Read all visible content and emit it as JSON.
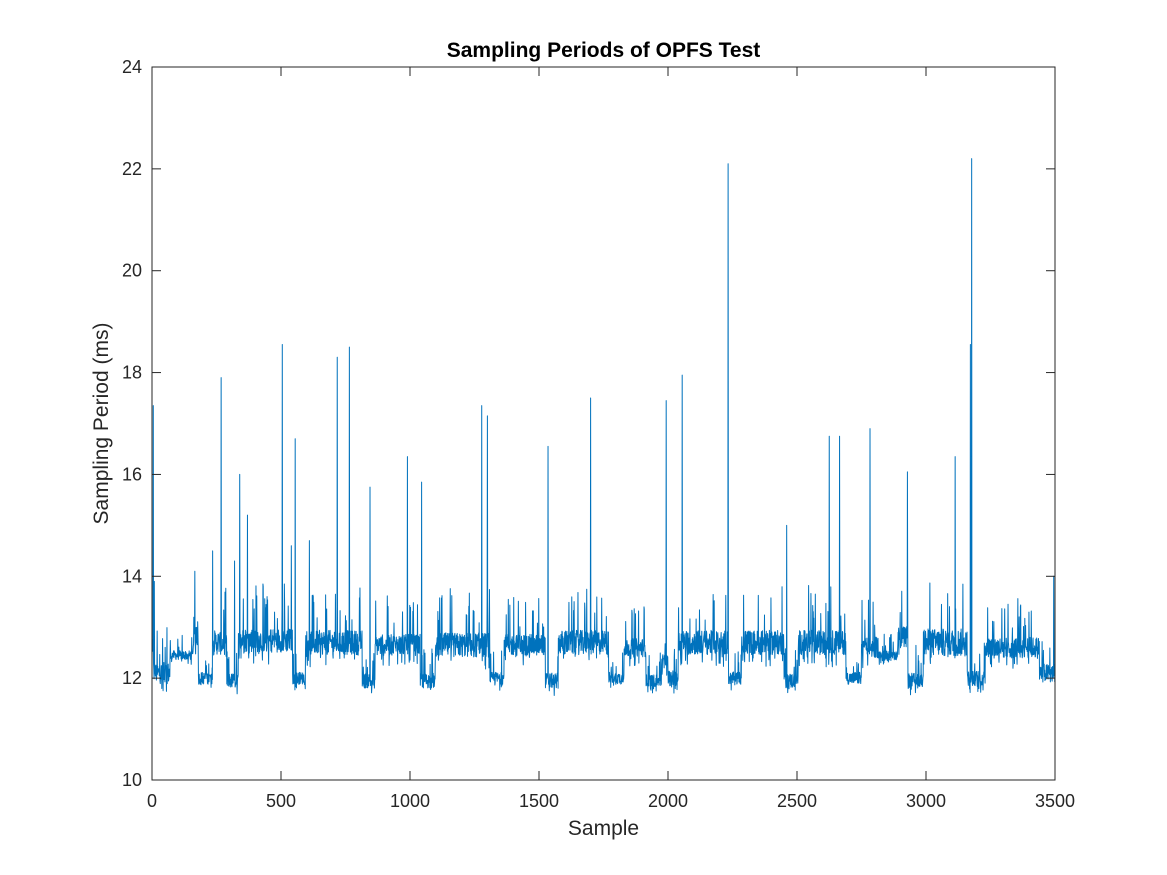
{
  "chart_data": {
    "type": "line",
    "title": "Sampling Periods of OPFS Test",
    "xlabel": "Sample",
    "ylabel": "Sampling Period (ms)",
    "xlim": [
      0,
      3500
    ],
    "ylim": [
      10,
      24
    ],
    "xticks": [
      0,
      500,
      1000,
      1500,
      2000,
      2500,
      3000,
      3500
    ],
    "yticks": [
      10,
      12,
      14,
      16,
      18,
      20,
      22,
      24
    ],
    "grid": false,
    "legend": "none",
    "line_color": "#0072BD",
    "series": [
      {
        "segments": [
          {
            "from": 0,
            "to": 8,
            "level": 12.4,
            "spread": 0.6
          },
          {
            "from": 8,
            "to": 70,
            "level": 12.1,
            "spread": 0.35
          },
          {
            "from": 70,
            "to": 160,
            "level": 12.45,
            "spread": 0.15
          },
          {
            "from": 160,
            "to": 180,
            "level": 12.9,
            "spread": 0.5
          },
          {
            "from": 180,
            "to": 235,
            "level": 12.0,
            "spread": 0.2
          },
          {
            "from": 235,
            "to": 290,
            "level": 12.7,
            "spread": 0.4
          },
          {
            "from": 290,
            "to": 335,
            "level": 11.95,
            "spread": 0.25
          },
          {
            "from": 335,
            "to": 545,
            "level": 12.75,
            "spread": 0.4
          },
          {
            "from": 545,
            "to": 595,
            "level": 12.0,
            "spread": 0.2
          },
          {
            "from": 595,
            "to": 815,
            "level": 12.7,
            "spread": 0.4
          },
          {
            "from": 815,
            "to": 865,
            "level": 11.95,
            "spread": 0.25
          },
          {
            "from": 865,
            "to": 1040,
            "level": 12.65,
            "spread": 0.35
          },
          {
            "from": 1040,
            "to": 1100,
            "level": 11.95,
            "spread": 0.25
          },
          {
            "from": 1100,
            "to": 1310,
            "level": 12.65,
            "spread": 0.4
          },
          {
            "from": 1310,
            "to": 1365,
            "level": 12.0,
            "spread": 0.2
          },
          {
            "from": 1365,
            "to": 1525,
            "level": 12.65,
            "spread": 0.35
          },
          {
            "from": 1525,
            "to": 1575,
            "level": 11.95,
            "spread": 0.25
          },
          {
            "from": 1575,
            "to": 1770,
            "level": 12.7,
            "spread": 0.4
          },
          {
            "from": 1770,
            "to": 1830,
            "level": 12.0,
            "spread": 0.2
          },
          {
            "from": 1830,
            "to": 1915,
            "level": 12.6,
            "spread": 0.3
          },
          {
            "from": 1915,
            "to": 1975,
            "level": 11.95,
            "spread": 0.2
          },
          {
            "from": 1975,
            "to": 2000,
            "level": 12.3,
            "spread": 0.3
          },
          {
            "from": 2000,
            "to": 2040,
            "level": 12.0,
            "spread": 0.25
          },
          {
            "from": 2040,
            "to": 2235,
            "level": 12.7,
            "spread": 0.4
          },
          {
            "from": 2235,
            "to": 2285,
            "level": 12.0,
            "spread": 0.2
          },
          {
            "from": 2285,
            "to": 2450,
            "level": 12.7,
            "spread": 0.4
          },
          {
            "from": 2450,
            "to": 2505,
            "level": 11.95,
            "spread": 0.25
          },
          {
            "from": 2505,
            "to": 2690,
            "level": 12.7,
            "spread": 0.4
          },
          {
            "from": 2690,
            "to": 2750,
            "level": 12.0,
            "spread": 0.2
          },
          {
            "from": 2750,
            "to": 2820,
            "level": 12.6,
            "spread": 0.35
          },
          {
            "from": 2820,
            "to": 2890,
            "level": 12.45,
            "spread": 0.15
          },
          {
            "from": 2890,
            "to": 2930,
            "level": 12.8,
            "spread": 0.35
          },
          {
            "from": 2930,
            "to": 2990,
            "level": 11.95,
            "spread": 0.25
          },
          {
            "from": 2990,
            "to": 3160,
            "level": 12.7,
            "spread": 0.45
          },
          {
            "from": 3160,
            "to": 3230,
            "level": 12.0,
            "spread": 0.25
          },
          {
            "from": 3230,
            "to": 3440,
            "level": 12.6,
            "spread": 0.35
          },
          {
            "from": 3440,
            "to": 3500,
            "level": 12.1,
            "spread": 0.3
          }
        ],
        "spikes": [
          {
            "x": 5,
            "y": 17.35
          },
          {
            "x": 9,
            "y": 13.9
          },
          {
            "x": 235,
            "y": 14.5
          },
          {
            "x": 268,
            "y": 17.9
          },
          {
            "x": 320,
            "y": 14.3
          },
          {
            "x": 340,
            "y": 16.0
          },
          {
            "x": 370,
            "y": 15.2
          },
          {
            "x": 505,
            "y": 18.55
          },
          {
            "x": 540,
            "y": 14.6
          },
          {
            "x": 555,
            "y": 16.7
          },
          {
            "x": 610,
            "y": 14.7
          },
          {
            "x": 718,
            "y": 18.3
          },
          {
            "x": 765,
            "y": 18.5
          },
          {
            "x": 845,
            "y": 15.75
          },
          {
            "x": 990,
            "y": 16.35
          },
          {
            "x": 1045,
            "y": 15.85
          },
          {
            "x": 1278,
            "y": 17.35
          },
          {
            "x": 1300,
            "y": 17.15
          },
          {
            "x": 1535,
            "y": 16.55
          },
          {
            "x": 1700,
            "y": 17.5
          },
          {
            "x": 1993,
            "y": 17.45
          },
          {
            "x": 2055,
            "y": 17.95
          },
          {
            "x": 2233,
            "y": 22.1
          },
          {
            "x": 2460,
            "y": 15.0
          },
          {
            "x": 2625,
            "y": 16.75
          },
          {
            "x": 2665,
            "y": 16.75
          },
          {
            "x": 2783,
            "y": 16.9
          },
          {
            "x": 2928,
            "y": 16.05
          },
          {
            "x": 3113,
            "y": 16.35
          },
          {
            "x": 3172,
            "y": 18.55
          },
          {
            "x": 3177,
            "y": 22.2
          },
          {
            "x": 3495,
            "y": 14.0
          }
        ]
      }
    ]
  }
}
